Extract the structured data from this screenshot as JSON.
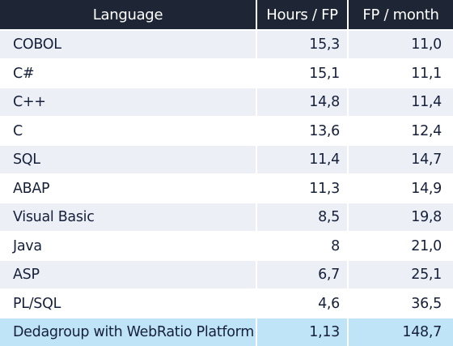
{
  "table": {
    "headers": {
      "language": "Language",
      "hours_fp": "Hours /  FP",
      "fp_month": "FP / month"
    },
    "rows": [
      {
        "language": "COBOL",
        "hours_fp": "15,3",
        "fp_month": "11,0"
      },
      {
        "language": "C#",
        "hours_fp": "15,1",
        "fp_month": "11,1"
      },
      {
        "language": "C++",
        "hours_fp": "14,8",
        "fp_month": "11,4"
      },
      {
        "language": "C",
        "hours_fp": "13,6",
        "fp_month": "12,4"
      },
      {
        "language": "SQL",
        "hours_fp": "11,4",
        "fp_month": "14,7"
      },
      {
        "language": "ABAP",
        "hours_fp": "11,3",
        "fp_month": "14,9"
      },
      {
        "language": "Visual Basic",
        "hours_fp": "8,5",
        "fp_month": "19,8"
      },
      {
        "language": "Java",
        "hours_fp": "8",
        "fp_month": "21,0"
      },
      {
        "language": "ASP",
        "hours_fp": "6,7",
        "fp_month": "25,1"
      },
      {
        "language": "PL/SQL",
        "hours_fp": "4,6",
        "fp_month": "36,5"
      },
      {
        "language": "Dedagroup with WebRatio Platform",
        "hours_fp": "1,13",
        "fp_month": "148,7"
      }
    ],
    "highlight_row": 10,
    "colors": {
      "header_bg": "#1e2635",
      "stripe": "#eceff6",
      "highlight": "#bfe4f7",
      "text": "#16203a"
    }
  }
}
